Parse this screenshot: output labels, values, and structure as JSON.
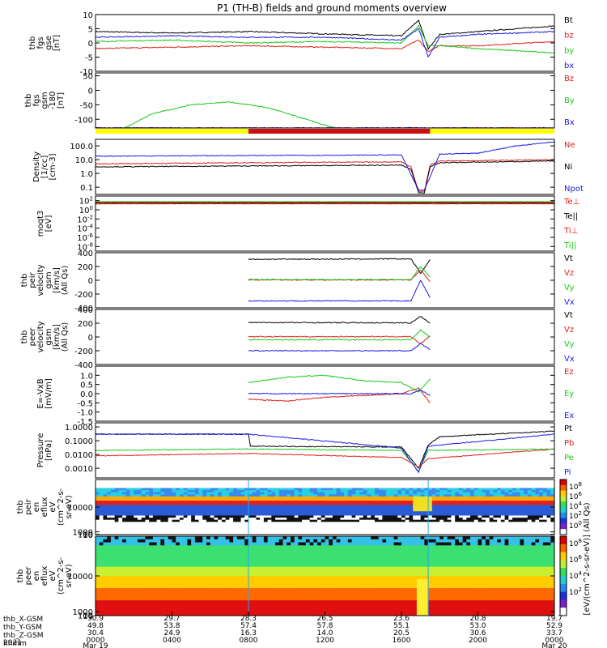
{
  "title": "P1 (TH-B) fields and ground moments overview",
  "colors": {
    "black": "#000000",
    "red": "#e0201b",
    "green": "#19c919",
    "blue": "#1a1ae6",
    "yellow": "#ffff00",
    "darkred": "#cc1010",
    "cyan": "#22aaee"
  },
  "chart_data": [
    {
      "panel": "fgs_gse",
      "type": "line",
      "ylabel": [
        "thb",
        "fgs",
        "gse",
        "[nT]"
      ],
      "ylim": [
        -10,
        10
      ],
      "yticks": [
        "10",
        "5",
        "0",
        "-5",
        "-10"
      ],
      "series": [
        {
          "name": "Bt",
          "color": "black",
          "x": [
            0,
            4,
            8,
            12,
            16,
            16.9,
            17.4,
            18,
            20,
            24
          ],
          "y": [
            4,
            3.5,
            4,
            3.2,
            2.5,
            8,
            -2,
            3,
            4,
            6
          ]
        },
        {
          "name": "bz",
          "color": "red",
          "x": [
            0,
            4,
            8,
            12,
            16,
            16.9,
            17.4,
            18,
            20,
            24
          ],
          "y": [
            -2,
            -1.5,
            -1,
            -1.5,
            -2,
            1,
            -3,
            -1,
            -1,
            0.5
          ]
        },
        {
          "name": "by",
          "color": "green",
          "x": [
            0,
            4,
            8,
            12,
            16,
            16.9,
            17.4,
            18,
            20,
            24
          ],
          "y": [
            0.5,
            1,
            0,
            0.5,
            0,
            6,
            -1,
            -1,
            -2,
            -3.5
          ]
        },
        {
          "name": "bx",
          "color": "blue",
          "x": [
            0,
            4,
            8,
            12,
            16,
            16.9,
            17.4,
            18,
            20,
            24
          ],
          "y": [
            2,
            2.5,
            2,
            2,
            1,
            5,
            -5,
            2,
            3,
            4
          ]
        }
      ]
    },
    {
      "panel": "fgs_gsm",
      "type": "line",
      "ylabel": [
        "thb",
        "fgs",
        "gsm",
        "-180",
        "[nT]"
      ],
      "ylim": [
        -130,
        60
      ],
      "yticks": [
        "50",
        "0",
        "-50",
        "-100"
      ],
      "series": [
        {
          "name": "Bz",
          "color": "red",
          "x": [
            0,
            24
          ],
          "y": [
            -130,
            -130
          ]
        },
        {
          "name": "By",
          "color": "green",
          "x": [
            1.5,
            3,
            5,
            7,
            9,
            11,
            12.5
          ],
          "y": [
            -130,
            -80,
            -50,
            -40,
            -60,
            -100,
            -130
          ]
        },
        {
          "name": "Bx",
          "color": "blue",
          "x": [
            0,
            24
          ],
          "y": [
            -130,
            -130
          ]
        }
      ]
    },
    {
      "panel": "density",
      "type": "line",
      "scale": "log",
      "ylabel": [
        "Density",
        "[1/cc]",
        "[cm-3]"
      ],
      "ylim": [
        0.03,
        300
      ],
      "yticks": [
        "100.0",
        "10.0",
        "1.0",
        "0.1"
      ],
      "series": [
        {
          "name": "Ne",
          "color": "red",
          "x": [
            0,
            8,
            16,
            16.5,
            16.9,
            17.2,
            17.5,
            18,
            24
          ],
          "y": [
            5,
            6,
            7,
            3,
            0.05,
            0.05,
            4,
            8,
            10
          ]
        },
        {
          "name": "Ni",
          "color": "black",
          "x": [
            0,
            8,
            16,
            16.5,
            16.9,
            17.2,
            17.5,
            18,
            24
          ],
          "y": [
            3,
            3.5,
            4,
            2,
            0.04,
            0.04,
            3,
            6,
            8
          ]
        },
        {
          "name": "Npot",
          "color": "blue",
          "x": [
            0,
            8,
            16,
            16.9,
            17.2,
            18,
            20,
            22,
            24
          ],
          "y": [
            18,
            20,
            22,
            0.06,
            0.06,
            25,
            30,
            100,
            200
          ]
        }
      ]
    },
    {
      "panel": "temperature",
      "type": "line",
      "scale": "log",
      "ylabel": [
        "moqt3",
        "[eV]"
      ],
      "ylim": [
        1e-09,
        1000.0
      ],
      "yticks": [
        "10^2",
        "10^0",
        "10^-2",
        "10^-4",
        "10^-6",
        "10^-8"
      ],
      "series": [
        {
          "name": "Te⊥",
          "color": "red",
          "x": [
            0,
            24
          ],
          "y": [
            20,
            20
          ]
        },
        {
          "name": "Te||",
          "color": "black",
          "x": [
            0,
            24
          ],
          "y": [
            30,
            30
          ]
        },
        {
          "name": "Ti⊥",
          "color": "darkred",
          "x": [
            0,
            24
          ],
          "y": [
            40,
            40
          ]
        },
        {
          "name": "Ti||",
          "color": "green",
          "x": [
            0,
            24
          ],
          "y": [
            60,
            60
          ]
        }
      ]
    },
    {
      "panel": "ion_velocity",
      "type": "line",
      "ylabel": [
        "thb",
        "peir",
        "velocity",
        "gsm",
        "[km/s]",
        "(All Qs)"
      ],
      "ylim": [
        -400,
        400
      ],
      "yticks": [
        "400",
        "200",
        "0",
        "-200",
        "-400"
      ],
      "series": [
        {
          "name": "Vt",
          "color": "black",
          "x": [
            8,
            16.5,
            17,
            17.5
          ],
          "y": [
            305,
            310,
            100,
            300
          ]
        },
        {
          "name": "Vz",
          "color": "red",
          "x": [
            8,
            16.5,
            17,
            17.5
          ],
          "y": [
            5,
            5,
            150,
            -20
          ]
        },
        {
          "name": "Vy",
          "color": "green",
          "x": [
            8,
            16.5,
            17,
            17.5
          ],
          "y": [
            10,
            10,
            200,
            50
          ]
        },
        {
          "name": "Vx",
          "color": "blue",
          "x": [
            8,
            16.5,
            17,
            17.5
          ],
          "y": [
            -300,
            -300,
            0,
            -250
          ]
        }
      ]
    },
    {
      "panel": "electron_velocity",
      "type": "line",
      "ylabel": [
        "thb",
        "peer",
        "velocity",
        "gsm",
        "[km/s]",
        "(All Qs)"
      ],
      "ylim": [
        -400,
        400
      ],
      "yticks": [
        "400",
        "200",
        "0",
        "-200",
        "-400"
      ],
      "series": [
        {
          "name": "Vt",
          "color": "black",
          "x": [
            8,
            16.5,
            17,
            17.5
          ],
          "y": [
            210,
            205,
            300,
            200
          ]
        },
        {
          "name": "Vz",
          "color": "red",
          "x": [
            8,
            16.5,
            17,
            17.5
          ],
          "y": [
            5,
            5,
            -100,
            20
          ]
        },
        {
          "name": "Vy",
          "color": "green",
          "x": [
            8,
            16.5,
            17,
            17.5
          ],
          "y": [
            -40,
            -40,
            100,
            0
          ]
        },
        {
          "name": "Vx",
          "color": "blue",
          "x": [
            8,
            16.5,
            17,
            17.5
          ],
          "y": [
            -200,
            -200,
            -100,
            -180
          ]
        }
      ]
    },
    {
      "panel": "efield",
      "type": "line",
      "ylabel": [
        "E=-VxB",
        "[mV/m]"
      ],
      "ylim": [
        -1.5,
        1.5
      ],
      "yticks": [
        "1.0",
        "0.5",
        "0.0",
        "-0.5",
        "-1.0",
        "-1.5"
      ],
      "series": [
        {
          "name": "Ez",
          "color": "red",
          "x": [
            8,
            10,
            12,
            14,
            16,
            16.9,
            17.5
          ],
          "y": [
            -0.3,
            -0.4,
            -0.2,
            -0.1,
            0.0,
            0.3,
            -0.5
          ]
        },
        {
          "name": "Ey",
          "color": "green",
          "x": [
            8,
            10,
            12,
            14,
            16,
            16.9,
            17.5
          ],
          "y": [
            0.6,
            0.9,
            1.0,
            0.7,
            0.6,
            0.1,
            0.8
          ]
        },
        {
          "name": "Ex",
          "color": "blue",
          "x": [
            8,
            16.5,
            17,
            17.5
          ],
          "y": [
            0.0,
            0.0,
            0.2,
            -0.1
          ]
        }
      ]
    },
    {
      "panel": "pressure",
      "type": "line",
      "scale": "log",
      "ylabel": [
        "Pressure",
        "[nPa]"
      ],
      "ylim": [
        0.0002,
        2
      ],
      "yticks": [
        "1.0000",
        "0.1000",
        "0.0100",
        "0.0010"
      ],
      "series": [
        {
          "name": "Pt",
          "color": "black",
          "x": [
            0,
            8,
            8.1,
            16,
            16.9,
            17.4,
            18,
            24
          ],
          "y": [
            0.3,
            0.3,
            0.04,
            0.035,
            0.001,
            0.05,
            0.2,
            0.5
          ]
        },
        {
          "name": "Pb",
          "color": "red",
          "x": [
            0,
            8,
            16,
            16.9,
            17.4,
            24
          ],
          "y": [
            0.008,
            0.012,
            0.006,
            0.0012,
            0.005,
            0.025
          ]
        },
        {
          "name": "Pe",
          "color": "green",
          "x": [
            0,
            8,
            16,
            16.9,
            17.4,
            24
          ],
          "y": [
            0.02,
            0.025,
            0.02,
            0.0006,
            0.02,
            0.025
          ]
        },
        {
          "name": "Pi",
          "color": "blue",
          "x": [
            0,
            8,
            16,
            16.9,
            17.4,
            24
          ],
          "y": [
            0.3,
            0.3,
            0.03,
            0.0005,
            0.04,
            0.3
          ]
        }
      ]
    },
    {
      "panel": "ion_spectrogram",
      "type": "heatmap",
      "ylabel": [
        "thb",
        "peir",
        "en",
        "eflux",
        "eV",
        "(cm^2-s-",
        "sr-eV)"
      ],
      "ylim": [
        1,
        20000
      ],
      "yticks": [
        "10000",
        "1000",
        "100",
        "10"
      ]
    },
    {
      "panel": "electron_spectrogram",
      "type": "heatmap",
      "ylabel": [
        "thb",
        "peer",
        "en",
        "eflux",
        "eV",
        "(cm^2-s-",
        "sr-eV)"
      ],
      "ylim": [
        5,
        20000
      ],
      "yticks": [
        "10000",
        "1000",
        "100",
        "10"
      ]
    }
  ],
  "colorbar": {
    "label": "[eV/(cm^2-s-sr-eV)] (All Qs)",
    "ticks_top": [
      "10^8",
      "10^6",
      "10^4",
      "10^2",
      "10^0"
    ],
    "ticks_bottom": [
      "10^8",
      "10^6",
      "10^4",
      "10^2"
    ]
  },
  "xaxis": {
    "row_labels": [
      "thb_X-GSM",
      "thb_Y-GSM",
      "thb_Z-GSM",
      "hhmm",
      "2021"
    ],
    "columns": [
      {
        "x": 0,
        "X": "30.9",
        "Y": "49.8",
        "Z": "30.4",
        "hhmm": "0000",
        "date": "Mar 19"
      },
      {
        "x": 4,
        "X": "29.7",
        "Y": "53.8",
        "Z": "24.9",
        "hhmm": "0400",
        "date": ""
      },
      {
        "x": 8,
        "X": "28.3",
        "Y": "57.4",
        "Z": "16.3",
        "hhmm": "0800",
        "date": ""
      },
      {
        "x": 12,
        "X": "26.5",
        "Y": "57.8",
        "Z": "14.0",
        "hhmm": "1200",
        "date": ""
      },
      {
        "x": 16,
        "X": "23.6",
        "Y": "55.1",
        "Z": "20.5",
        "hhmm": "1600",
        "date": ""
      },
      {
        "x": 20,
        "X": "20.8",
        "Y": "53.0",
        "Z": "30.6",
        "hhmm": "2000",
        "date": ""
      },
      {
        "x": 24,
        "X": "19.7",
        "Y": "52.9",
        "Z": "33.7",
        "hhmm": "0000",
        "date": "Mar 20"
      }
    ]
  }
}
